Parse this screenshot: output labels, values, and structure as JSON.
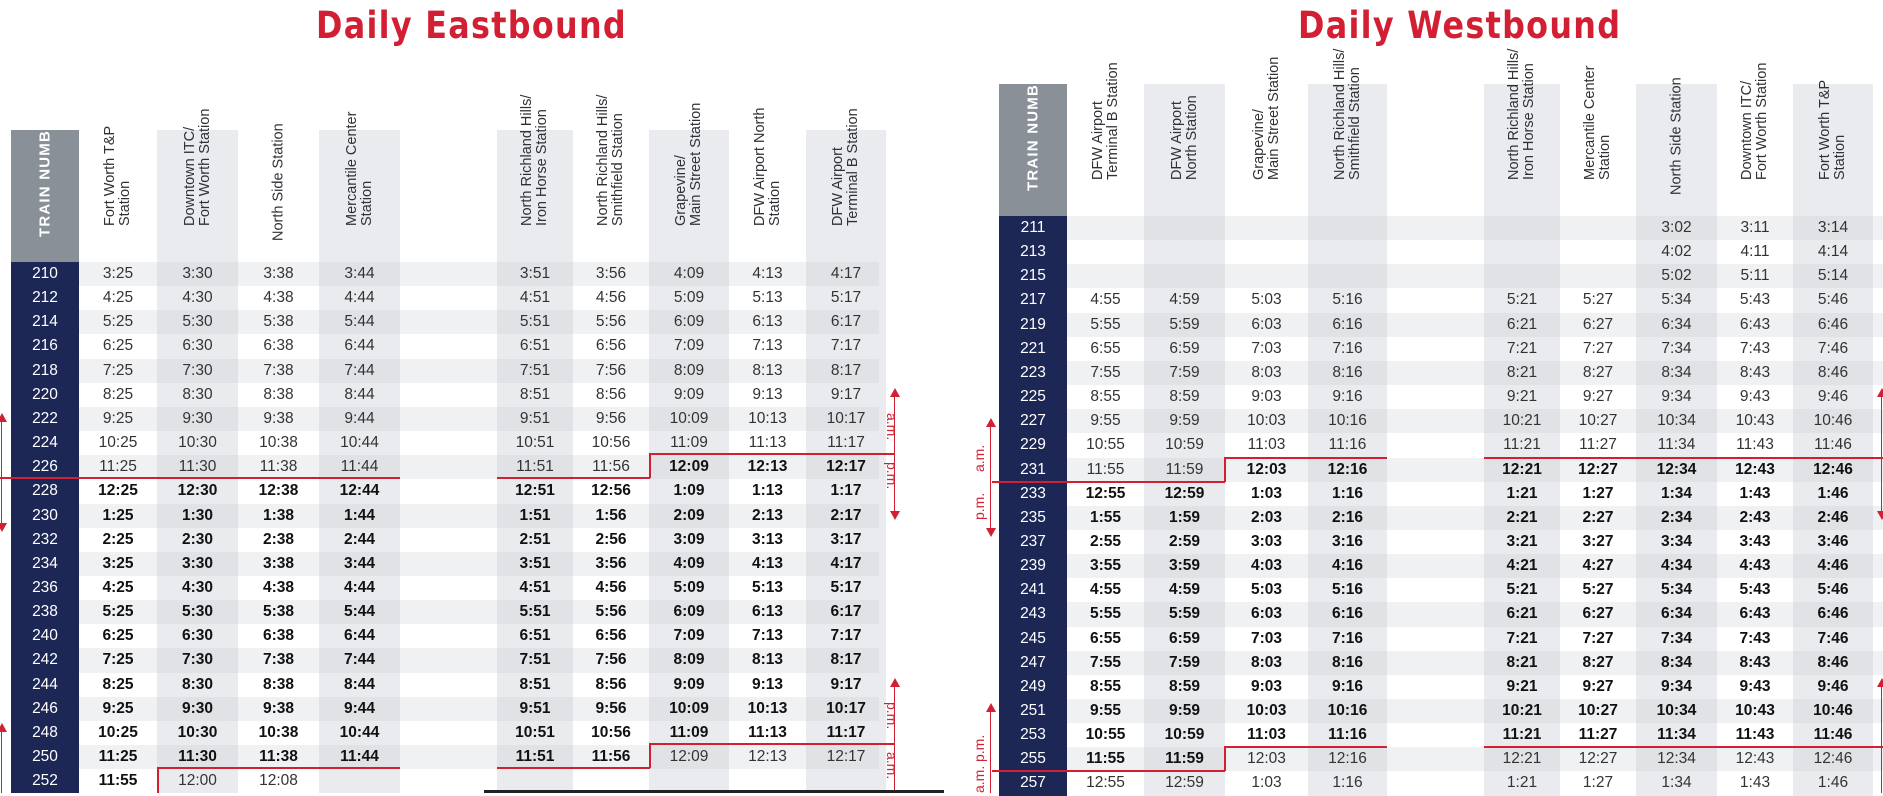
{
  "eastbound": {
    "title": "Daily Eastbound",
    "train_numbers_label": "TRAIN NUMBERS",
    "stations": [
      {
        "lines": [
          "Fort Worth T&P",
          "Station"
        ]
      },
      {
        "lines": [
          "Downtown ITC/",
          "Fort Worth Station"
        ]
      },
      {
        "lines": [
          "North Side Station"
        ]
      },
      {
        "lines": [
          "Mercantile Center",
          "Station"
        ]
      },
      {
        "lines": [
          "North Richland Hills/",
          "Iron Horse Station"
        ]
      },
      {
        "lines": [
          "North Richland Hills/",
          "Smithfield Station"
        ]
      },
      {
        "lines": [
          "Grapevine/",
          "Main Street Station"
        ]
      },
      {
        "lines": [
          "DFW Airport North",
          "Station"
        ]
      },
      {
        "lines": [
          "DFW Airport",
          "Terminal B Station"
        ]
      }
    ],
    "am_label": "a.m.",
    "pm_label": "p.m.",
    "rows": [
      {
        "train": "210",
        "times": [
          "3:25",
          "3:30",
          "3:38",
          "3:44",
          "3:51",
          "3:56",
          "4:09",
          "4:13",
          "4:17"
        ],
        "pm_from": 99
      },
      {
        "train": "212",
        "times": [
          "4:25",
          "4:30",
          "4:38",
          "4:44",
          "4:51",
          "4:56",
          "5:09",
          "5:13",
          "5:17"
        ],
        "pm_from": 99
      },
      {
        "train": "214",
        "times": [
          "5:25",
          "5:30",
          "5:38",
          "5:44",
          "5:51",
          "5:56",
          "6:09",
          "6:13",
          "6:17"
        ],
        "pm_from": 99
      },
      {
        "train": "216",
        "times": [
          "6:25",
          "6:30",
          "6:38",
          "6:44",
          "6:51",
          "6:56",
          "7:09",
          "7:13",
          "7:17"
        ],
        "pm_from": 99
      },
      {
        "train": "218",
        "times": [
          "7:25",
          "7:30",
          "7:38",
          "7:44",
          "7:51",
          "7:56",
          "8:09",
          "8:13",
          "8:17"
        ],
        "pm_from": 99
      },
      {
        "train": "220",
        "times": [
          "8:25",
          "8:30",
          "8:38",
          "8:44",
          "8:51",
          "8:56",
          "9:09",
          "9:13",
          "9:17"
        ],
        "pm_from": 99
      },
      {
        "train": "222",
        "times": [
          "9:25",
          "9:30",
          "9:38",
          "9:44",
          "9:51",
          "9:56",
          "10:09",
          "10:13",
          "10:17"
        ],
        "pm_from": 99
      },
      {
        "train": "224",
        "times": [
          "10:25",
          "10:30",
          "10:38",
          "10:44",
          "10:51",
          "10:56",
          "11:09",
          "11:13",
          "11:17"
        ],
        "pm_from": 99
      },
      {
        "train": "226",
        "times": [
          "11:25",
          "11:30",
          "11:38",
          "11:44",
          "11:51",
          "11:56",
          "12:09",
          "12:13",
          "12:17"
        ],
        "pm_from": 6
      },
      {
        "train": "228",
        "times": [
          "12:25",
          "12:30",
          "12:38",
          "12:44",
          "12:51",
          "12:56",
          "1:09",
          "1:13",
          "1:17"
        ],
        "pm_from": 0
      },
      {
        "train": "230",
        "times": [
          "1:25",
          "1:30",
          "1:38",
          "1:44",
          "1:51",
          "1:56",
          "2:09",
          "2:13",
          "2:17"
        ],
        "pm_from": 0
      },
      {
        "train": "232",
        "times": [
          "2:25",
          "2:30",
          "2:38",
          "2:44",
          "2:51",
          "2:56",
          "3:09",
          "3:13",
          "3:17"
        ],
        "pm_from": 0
      },
      {
        "train": "234",
        "times": [
          "3:25",
          "3:30",
          "3:38",
          "3:44",
          "3:51",
          "3:56",
          "4:09",
          "4:13",
          "4:17"
        ],
        "pm_from": 0
      },
      {
        "train": "236",
        "times": [
          "4:25",
          "4:30",
          "4:38",
          "4:44",
          "4:51",
          "4:56",
          "5:09",
          "5:13",
          "5:17"
        ],
        "pm_from": 0
      },
      {
        "train": "238",
        "times": [
          "5:25",
          "5:30",
          "5:38",
          "5:44",
          "5:51",
          "5:56",
          "6:09",
          "6:13",
          "6:17"
        ],
        "pm_from": 0
      },
      {
        "train": "240",
        "times": [
          "6:25",
          "6:30",
          "6:38",
          "6:44",
          "6:51",
          "6:56",
          "7:09",
          "7:13",
          "7:17"
        ],
        "pm_from": 0
      },
      {
        "train": "242",
        "times": [
          "7:25",
          "7:30",
          "7:38",
          "7:44",
          "7:51",
          "7:56",
          "8:09",
          "8:13",
          "8:17"
        ],
        "pm_from": 0
      },
      {
        "train": "244",
        "times": [
          "8:25",
          "8:30",
          "8:38",
          "8:44",
          "8:51",
          "8:56",
          "9:09",
          "9:13",
          "9:17"
        ],
        "pm_from": 0
      },
      {
        "train": "246",
        "times": [
          "9:25",
          "9:30",
          "9:38",
          "9:44",
          "9:51",
          "9:56",
          "10:09",
          "10:13",
          "10:17"
        ],
        "pm_from": 0
      },
      {
        "train": "248",
        "times": [
          "10:25",
          "10:30",
          "10:38",
          "10:44",
          "10:51",
          "10:56",
          "11:09",
          "11:13",
          "11:17"
        ],
        "pm_from": 0
      },
      {
        "train": "250",
        "times": [
          "11:25",
          "11:30",
          "11:38",
          "11:44",
          "11:51",
          "11:56",
          "12:09",
          "12:13",
          "12:17"
        ],
        "pm_from": 0,
        "am_from": 6
      },
      {
        "train": "252",
        "times": [
          "11:55",
          "12:00",
          "12:08",
          "",
          "",
          "",
          "",
          "",
          ""
        ],
        "pm_from": 0,
        "am_from": 1
      }
    ]
  },
  "westbound": {
    "title": "Daily Westbound",
    "train_numbers_label": "TRAIN NUMBERS",
    "stations": [
      {
        "lines": [
          "DFW Airport",
          "Terminal B Station"
        ]
      },
      {
        "lines": [
          "DFW Airport",
          "North Station"
        ]
      },
      {
        "lines": [
          "Grapevine/",
          "Main Street Station"
        ]
      },
      {
        "lines": [
          "North Richland Hills/",
          "Smithfield Station"
        ]
      },
      {
        "lines": [
          "North Richland Hills/",
          "Iron Horse Station"
        ]
      },
      {
        "lines": [
          "Mercantile Center",
          "Station"
        ]
      },
      {
        "lines": [
          "North Side Station"
        ]
      },
      {
        "lines": [
          "Downtown ITC/",
          "Fort Worth Station"
        ]
      },
      {
        "lines": [
          "Fort Worth T&P",
          "Station"
        ]
      }
    ],
    "am_label": "a.m.",
    "pm_label": "p.m.",
    "rows": [
      {
        "train": "211",
        "times": [
          "",
          "",
          "",
          "",
          "",
          "",
          "3:02",
          "3:11",
          "3:14"
        ],
        "pm_from": 99
      },
      {
        "train": "213",
        "times": [
          "",
          "",
          "",
          "",
          "",
          "",
          "4:02",
          "4:11",
          "4:14"
        ],
        "pm_from": 99
      },
      {
        "train": "215",
        "times": [
          "",
          "",
          "",
          "",
          "",
          "",
          "5:02",
          "5:11",
          "5:14"
        ],
        "pm_from": 99
      },
      {
        "train": "217",
        "times": [
          "4:55",
          "4:59",
          "5:03",
          "5:16",
          "5:21",
          "5:27",
          "5:34",
          "5:43",
          "5:46"
        ],
        "pm_from": 99
      },
      {
        "train": "219",
        "times": [
          "5:55",
          "5:59",
          "6:03",
          "6:16",
          "6:21",
          "6:27",
          "6:34",
          "6:43",
          "6:46"
        ],
        "pm_from": 99
      },
      {
        "train": "221",
        "times": [
          "6:55",
          "6:59",
          "7:03",
          "7:16",
          "7:21",
          "7:27",
          "7:34",
          "7:43",
          "7:46"
        ],
        "pm_from": 99
      },
      {
        "train": "223",
        "times": [
          "7:55",
          "7:59",
          "8:03",
          "8:16",
          "8:21",
          "8:27",
          "8:34",
          "8:43",
          "8:46"
        ],
        "pm_from": 99
      },
      {
        "train": "225",
        "times": [
          "8:55",
          "8:59",
          "9:03",
          "9:16",
          "9:21",
          "9:27",
          "9:34",
          "9:43",
          "9:46"
        ],
        "pm_from": 99
      },
      {
        "train": "227",
        "times": [
          "9:55",
          "9:59",
          "10:03",
          "10:16",
          "10:21",
          "10:27",
          "10:34",
          "10:43",
          "10:46"
        ],
        "pm_from": 99
      },
      {
        "train": "229",
        "times": [
          "10:55",
          "10:59",
          "11:03",
          "11:16",
          "11:21",
          "11:27",
          "11:34",
          "11:43",
          "11:46"
        ],
        "pm_from": 99
      },
      {
        "train": "231",
        "times": [
          "11:55",
          "11:59",
          "12:03",
          "12:16",
          "12:21",
          "12:27",
          "12:34",
          "12:43",
          "12:46"
        ],
        "pm_from": 2
      },
      {
        "train": "233",
        "times": [
          "12:55",
          "12:59",
          "1:03",
          "1:16",
          "1:21",
          "1:27",
          "1:34",
          "1:43",
          "1:46"
        ],
        "pm_from": 0
      },
      {
        "train": "235",
        "times": [
          "1:55",
          "1:59",
          "2:03",
          "2:16",
          "2:21",
          "2:27",
          "2:34",
          "2:43",
          "2:46"
        ],
        "pm_from": 0
      },
      {
        "train": "237",
        "times": [
          "2:55",
          "2:59",
          "3:03",
          "3:16",
          "3:21",
          "3:27",
          "3:34",
          "3:43",
          "3:46"
        ],
        "pm_from": 0
      },
      {
        "train": "239",
        "times": [
          "3:55",
          "3:59",
          "4:03",
          "4:16",
          "4:21",
          "4:27",
          "4:34",
          "4:43",
          "4:46"
        ],
        "pm_from": 0
      },
      {
        "train": "241",
        "times": [
          "4:55",
          "4:59",
          "5:03",
          "5:16",
          "5:21",
          "5:27",
          "5:34",
          "5:43",
          "5:46"
        ],
        "pm_from": 0
      },
      {
        "train": "243",
        "times": [
          "5:55",
          "5:59",
          "6:03",
          "6:16",
          "6:21",
          "6:27",
          "6:34",
          "6:43",
          "6:46"
        ],
        "pm_from": 0
      },
      {
        "train": "245",
        "times": [
          "6:55",
          "6:59",
          "7:03",
          "7:16",
          "7:21",
          "7:27",
          "7:34",
          "7:43",
          "7:46"
        ],
        "pm_from": 0
      },
      {
        "train": "247",
        "times": [
          "7:55",
          "7:59",
          "8:03",
          "8:16",
          "8:21",
          "8:27",
          "8:34",
          "8:43",
          "8:46"
        ],
        "pm_from": 0
      },
      {
        "train": "249",
        "times": [
          "8:55",
          "8:59",
          "9:03",
          "9:16",
          "9:21",
          "9:27",
          "9:34",
          "9:43",
          "9:46"
        ],
        "pm_from": 0
      },
      {
        "train": "251",
        "times": [
          "9:55",
          "9:59",
          "10:03",
          "10:16",
          "10:21",
          "10:27",
          "10:34",
          "10:43",
          "10:46"
        ],
        "pm_from": 0
      },
      {
        "train": "253",
        "times": [
          "10:55",
          "10:59",
          "11:03",
          "11:16",
          "11:21",
          "11:27",
          "11:34",
          "11:43",
          "11:46"
        ],
        "pm_from": 0
      },
      {
        "train": "255",
        "times": [
          "11:55",
          "11:59",
          "12:03",
          "12:16",
          "12:21",
          "12:27",
          "12:34",
          "12:43",
          "12:46"
        ],
        "pm_from": 0,
        "am_from": 2
      },
      {
        "train": "257",
        "times": [
          "12:55",
          "12:59",
          "1:03",
          "1:16",
          "1:21",
          "1:27",
          "1:34",
          "1:43",
          "1:46"
        ],
        "pm_from": 0,
        "am_from": 0
      }
    ]
  }
}
